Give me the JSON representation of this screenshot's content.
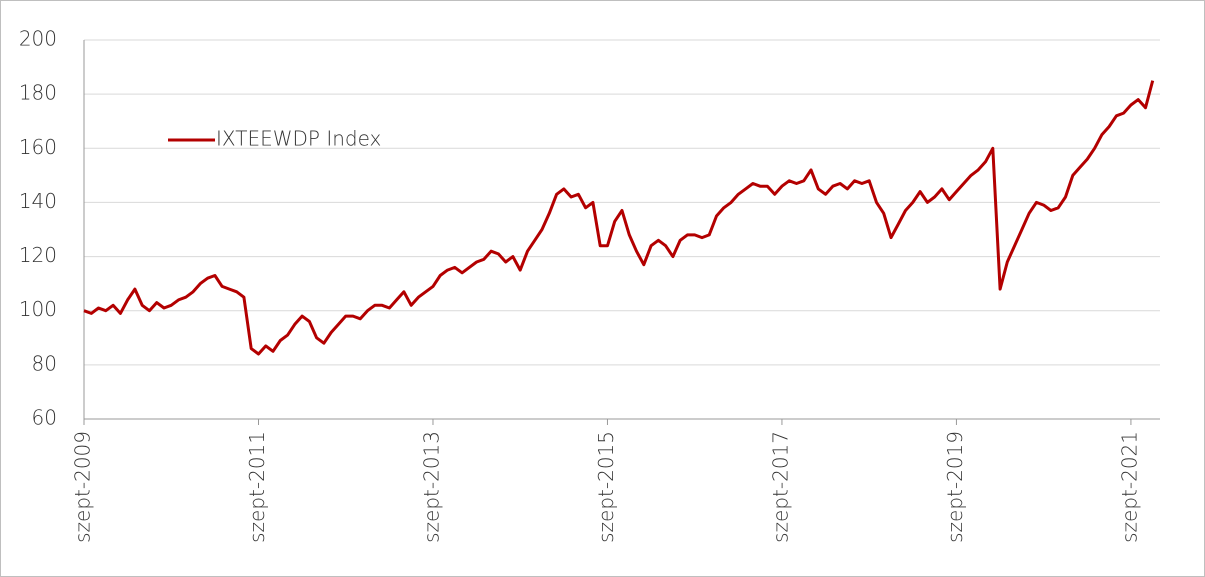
{
  "chart_data": {
    "type": "line",
    "x": [
      "2009-09",
      "2009-10",
      "2009-11",
      "2009-12",
      "2010-01",
      "2010-02",
      "2010-03",
      "2010-04",
      "2010-05",
      "2010-06",
      "2010-07",
      "2010-08",
      "2010-09",
      "2010-10",
      "2010-11",
      "2010-12",
      "2011-01",
      "2011-02",
      "2011-03",
      "2011-04",
      "2011-05",
      "2011-06",
      "2011-07",
      "2011-08",
      "2011-09",
      "2011-10",
      "2011-11",
      "2011-12",
      "2012-01",
      "2012-02",
      "2012-03",
      "2012-04",
      "2012-05",
      "2012-06",
      "2012-07",
      "2012-08",
      "2012-09",
      "2012-10",
      "2012-11",
      "2012-12",
      "2013-01",
      "2013-02",
      "2013-03",
      "2013-04",
      "2013-05",
      "2013-06",
      "2013-07",
      "2013-08",
      "2013-09",
      "2013-10",
      "2013-11",
      "2013-12",
      "2014-01",
      "2014-02",
      "2014-03",
      "2014-04",
      "2014-05",
      "2014-06",
      "2014-07",
      "2014-08",
      "2014-09",
      "2014-10",
      "2014-11",
      "2014-12",
      "2015-01",
      "2015-02",
      "2015-03",
      "2015-04",
      "2015-05",
      "2015-06",
      "2015-07",
      "2015-08",
      "2015-09",
      "2015-10",
      "2015-11",
      "2015-12",
      "2016-01",
      "2016-02",
      "2016-03",
      "2016-04",
      "2016-05",
      "2016-06",
      "2016-07",
      "2016-08",
      "2016-09",
      "2016-10",
      "2016-11",
      "2016-12",
      "2017-01",
      "2017-02",
      "2017-03",
      "2017-04",
      "2017-05",
      "2017-06",
      "2017-07",
      "2017-08",
      "2017-09",
      "2017-10",
      "2017-11",
      "2017-12",
      "2018-01",
      "2018-02",
      "2018-03",
      "2018-04",
      "2018-05",
      "2018-06",
      "2018-07",
      "2018-08",
      "2018-09",
      "2018-10",
      "2018-11",
      "2018-12",
      "2019-01",
      "2019-02",
      "2019-03",
      "2019-04",
      "2019-05",
      "2019-06",
      "2019-07",
      "2019-08",
      "2019-09",
      "2019-10",
      "2019-11",
      "2019-12",
      "2020-01",
      "2020-02",
      "2020-03",
      "2020-04",
      "2020-05",
      "2020-06",
      "2020-07",
      "2020-08",
      "2020-09",
      "2020-10",
      "2020-11",
      "2020-12",
      "2021-01",
      "2021-02",
      "2021-03",
      "2021-04",
      "2021-05",
      "2021-06",
      "2021-07",
      "2021-08",
      "2021-09",
      "2021-10",
      "2021-11",
      "2021-12"
    ],
    "series": [
      {
        "name": "IXTEEWDP Index",
        "color": "#b30000",
        "values": [
          100,
          99,
          101,
          100,
          102,
          99,
          104,
          108,
          102,
          100,
          103,
          101,
          102,
          104,
          105,
          107,
          110,
          112,
          113,
          109,
          108,
          107,
          105,
          86,
          84,
          87,
          85,
          89,
          91,
          95,
          98,
          96,
          90,
          88,
          92,
          95,
          98,
          98,
          97,
          100,
          102,
          102,
          101,
          104,
          107,
          102,
          105,
          107,
          109,
          113,
          115,
          116,
          114,
          116,
          118,
          119,
          122,
          121,
          118,
          120,
          115,
          122,
          126,
          130,
          136,
          143,
          145,
          142,
          143,
          138,
          140,
          124,
          124,
          133,
          137,
          128,
          122,
          117,
          124,
          126,
          124,
          120,
          126,
          128,
          128,
          127,
          128,
          135,
          138,
          140,
          143,
          145,
          147,
          146,
          146,
          143,
          146,
          148,
          147,
          148,
          152,
          145,
          143,
          146,
          147,
          145,
          148,
          147,
          148,
          140,
          136,
          127,
          132,
          137,
          140,
          144,
          140,
          142,
          145,
          141,
          144,
          147,
          150,
          152,
          155,
          160,
          108,
          118,
          124,
          130,
          136,
          140,
          139,
          137,
          138,
          142,
          150,
          153,
          156,
          160,
          165,
          168,
          172,
          173,
          176,
          178,
          175,
          185
        ]
      }
    ],
    "xlim": [
      "2009-09",
      "2022-01"
    ],
    "xticks": [
      {
        "value": "2009-09",
        "label": "szept-2009"
      },
      {
        "value": "2011-09",
        "label": "szept-2011"
      },
      {
        "value": "2013-09",
        "label": "szept-2013"
      },
      {
        "value": "2015-09",
        "label": "szept-2015"
      },
      {
        "value": "2017-09",
        "label": "szept-2017"
      },
      {
        "value": "2019-09",
        "label": "szept-2019"
      },
      {
        "value": "2021-09",
        "label": "szept-2021"
      }
    ],
    "ylim": [
      60,
      200
    ],
    "yticks": [
      60,
      80,
      100,
      120,
      140,
      160,
      180,
      200
    ],
    "grid": true
  }
}
